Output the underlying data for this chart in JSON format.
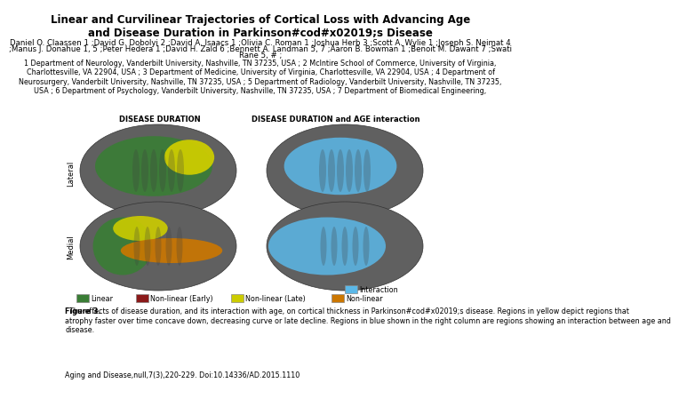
{
  "title": "Linear and Curvilinear Trajectories of Cortical Loss with Advancing Age\nand Disease Duration in Parkinson#cod#x02019;s Disease",
  "authors_line1": "Daniel O. Claassen 1 ;David G. Dobolyi 2 ;David A. Isaacs 1 ;Olivia C. Roman 1 ;Joshua Herb 3 ;Scott A. Wylie 1 ;Joseph S. Neimat 4",
  "authors_line2": ";Manus J. Donahue 1, 5 ;Peter Hedera 1 ;David H. Zald 6 ;Bennett A. Landman 5, 7 ;Aaron B. Bowman 1 ;Benoit M. Dawant 7 ;Swati",
  "authors_line3": "Rane 5, # ;",
  "affiliations": "1 Department of Neurology, Vanderbilt University, Nashville, TN 37235, USA ; 2 McIntire School of Commerce, University of Virginia,\nCharlottesville, VA 22904, USA ; 3 Department of Medicine, University of Virginia, Charlottesville, VA 22904, USA ; 4 Department of\nNeurosurgery, Vanderbilt University, Nashville, TN 37235, USA ; 5 Department of Radiology, Vanderbilt University, Nashville, TN 37235,\nUSA ; 6 Department of Psychology, Vanderbilt University, Nashville, TN 37235, USA ; 7 Department of Biomedical Engineering,",
  "left_brain_label": "DISEASE DURATION",
  "right_brain_label": "DISEASE DURATION and AGE interaction",
  "lateral_label": "Lateral",
  "medial_label": "Medial",
  "legend_items_bottom": [
    {
      "label": "Linear",
      "color": "#3a7d35"
    },
    {
      "label": "Non-linear (Early)",
      "color": "#8B1A1A"
    },
    {
      "label": "Non-linear (Late)",
      "color": "#CCCC00"
    },
    {
      "label": "Non-linear",
      "color": "#CC7700"
    }
  ],
  "legend_item_top_right": {
    "label": "Interaction",
    "color": "#5BB8E8"
  },
  "caption_label": "Figure 3.",
  "caption_text": "  The effects of disease duration, and its interaction with age, on cortical thickness in Parkinson#cod#x02019;s disease. Regions in yellow depict regions that\natrophy faster over time concave down, decreasing curve or late decline. Regions in blue shown in the right column are regions showing an interaction between age and\ndisease.",
  "journal_line": "Aging and Disease,null,7(3),220-229. Doi:10.14336/AD.2015.1110",
  "bg_color": "#FFFFFF",
  "brain_bg": "#AAAAAA",
  "brain_dark": "#555555",
  "brain_base": "#6B6B6B",
  "title_fontsize": 8.5,
  "author_fontsize": 6.2,
  "affil_fontsize": 5.8,
  "label_fontsize": 6.0,
  "caption_fontsize": 5.8,
  "journal_fontsize": 5.8
}
